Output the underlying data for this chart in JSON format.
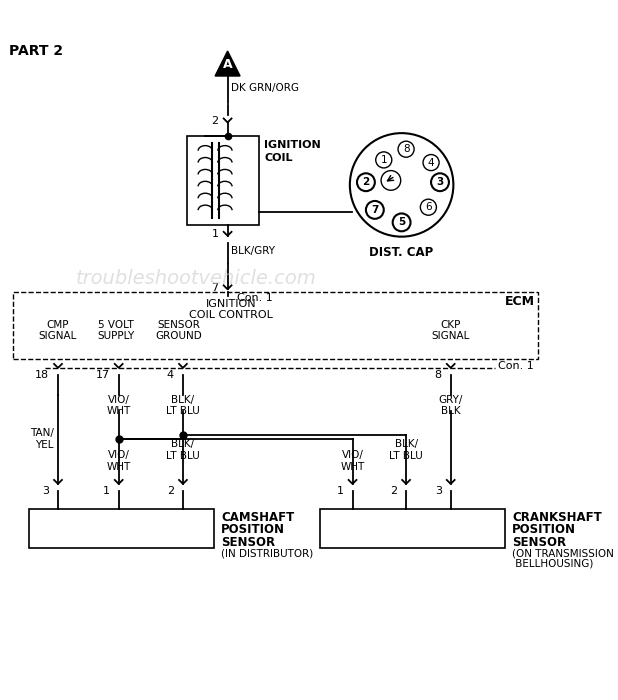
{
  "bg_color": "#ffffff",
  "line_color": "#000000",
  "text_color": "#000000",
  "watermark": "troubleshootvehicle.com",
  "title": "PART 2",
  "ecm_label": "ECM",
  "coil_label_1": "IGNITION",
  "coil_label_2": "COIL",
  "dist_cap_label": "DIST. CAP",
  "connector_label": "Con. 1",
  "ignition_coil_control_1": "IGNITION",
  "ignition_coil_control_2": "COIL CONTROL",
  "cmp_signal": "CMP\nSIGNAL",
  "volt_supply": "5 VOLT\nSUPPLY",
  "sensor_ground": "SENSOR\nGROUND",
  "ckp_signal": "CKP\nSIGNAL",
  "dk_grn_org": "DK GRN/ORG",
  "blk_gry": "BLK/GRY",
  "tan_yel_1": "TAN/",
  "tan_yel_2": "YEL",
  "vio_wht_1": "VIO/",
  "vio_wht_2": "WHT",
  "blk_lt_blu_1": "BLK/",
  "blk_lt_blu_2": "LT BLU",
  "gry_blk_1": "GRY/",
  "gry_blk_2": "BLK",
  "cam_sensor_lines": [
    "CAMSHAFT",
    "POSITION",
    "SENSOR"
  ],
  "cam_sensor_sub": "(IN DISTRIBUTOR)",
  "crank_sensor_lines": [
    "CRANKSHAFT",
    "POSITION",
    "SENSOR"
  ],
  "crank_sensor_sub_1": "(ON TRANSMISSION",
  "crank_sensor_sub_2": " BELLHOUSING)",
  "pin_18": "18",
  "pin_17": "17",
  "pin_4": "4",
  "pin_8": "8",
  "pin_7": "7",
  "pin_2_coil": "2",
  "pin_1_coil": "1",
  "A_label": "A"
}
